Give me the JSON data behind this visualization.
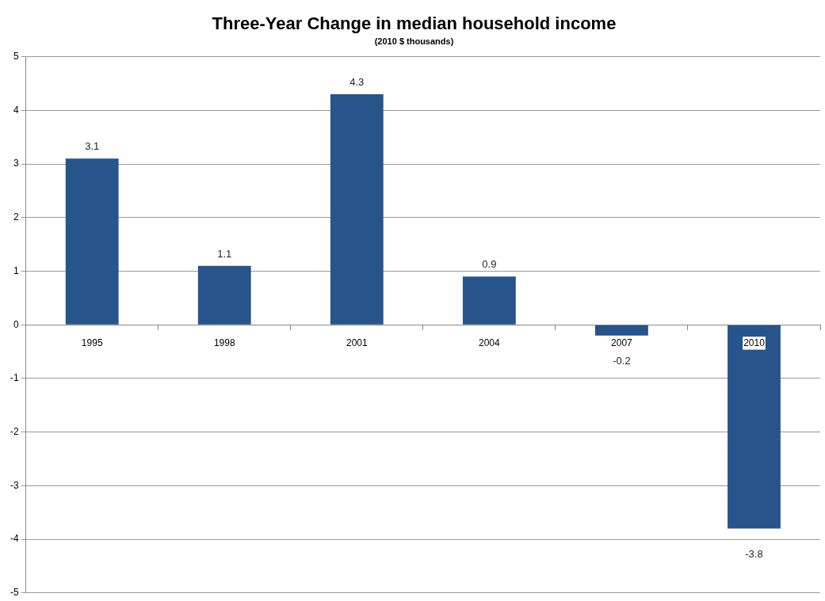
{
  "chart_data": {
    "type": "bar",
    "title": "Three-Year Change in median household income",
    "subtitle": "(2010 $ thousands)",
    "categories": [
      "1995",
      "1998",
      "2001",
      "2004",
      "2007",
      "2010"
    ],
    "values": [
      3.1,
      1.1,
      4.3,
      0.9,
      -0.2,
      -3.8
    ],
    "color": "#27548a",
    "ylim": [
      -5,
      5
    ],
    "yticks": [
      -5,
      -4,
      -3,
      -2,
      -1,
      0,
      1,
      2,
      3,
      4,
      5
    ],
    "grid": "y",
    "data_labels": true
  }
}
